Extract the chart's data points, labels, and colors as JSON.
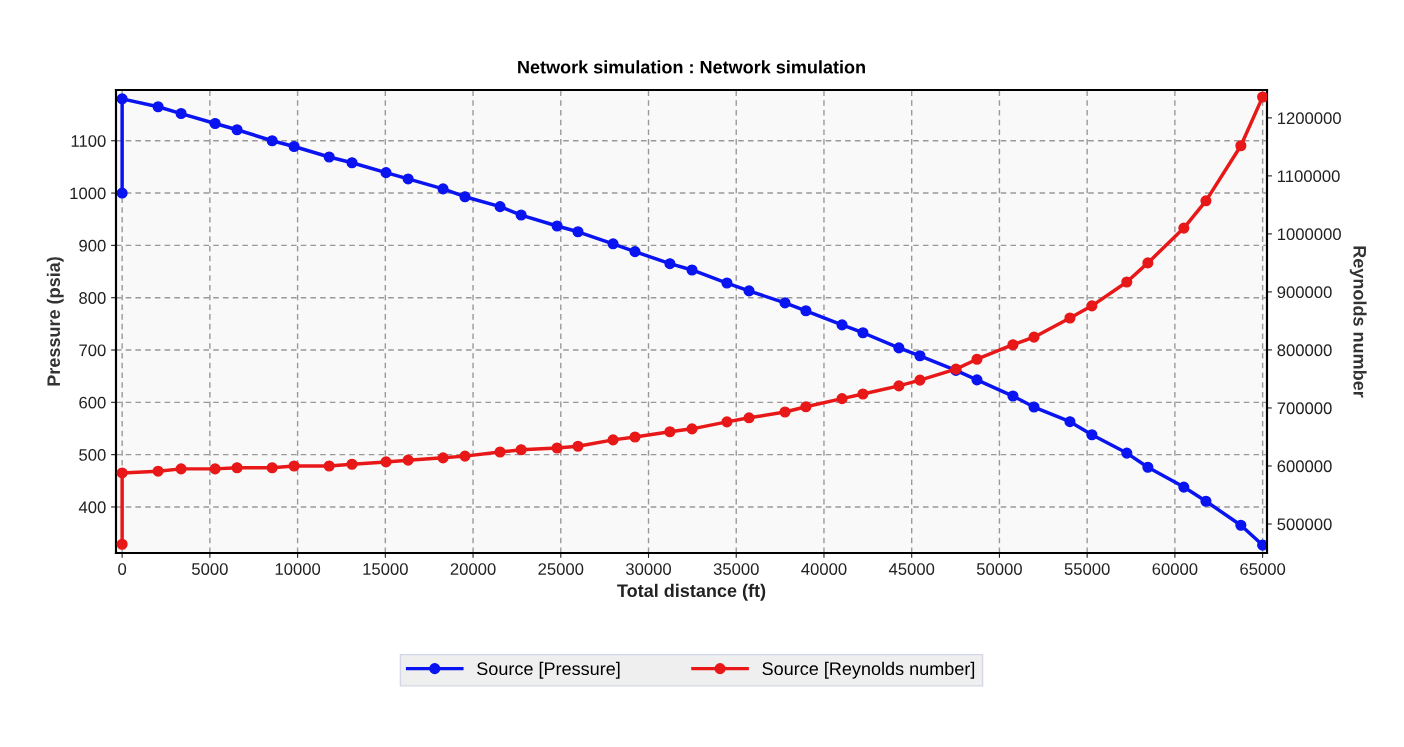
{
  "chart_data": {
    "type": "line",
    "title": "Network simulation : Network simulation",
    "xlabel": "Total distance (ft)",
    "ylabel": "Pressure (psia)",
    "y2label": "Reynolds number",
    "x": [
      0,
      0,
      2050,
      3360,
      5300,
      6550,
      8550,
      9800,
      11800,
      13100,
      15040,
      16300,
      18290,
      19540,
      21540,
      22740,
      24790,
      25980,
      27980,
      29230,
      31220,
      32480,
      34470,
      35730,
      37780,
      38970,
      41030,
      42220,
      44270,
      45470,
      47520,
      48720,
      50770,
      51970,
      54020,
      55270,
      57260,
      58460,
      60510,
      61770,
      63760,
      65000
    ],
    "series": [
      {
        "name": "Source [Pressure]",
        "color": "#0a14f0",
        "values": [
          1000,
          1180,
          1165,
          1152,
          1133,
          1121,
          1100,
          1089,
          1069,
          1058,
          1039,
          1027,
          1008,
          993,
          974,
          958,
          937,
          926,
          903,
          888,
          865,
          853,
          828,
          813,
          790,
          775,
          748,
          733,
          704,
          689,
          661,
          643,
          612,
          591,
          563,
          538,
          503,
          476,
          438,
          411,
          365,
          327
        ]
      },
      {
        "name": "Source [Reynolds number]",
        "color": "#e81818",
        "axis": "y2",
        "values": [
          465000,
          588000,
          591000,
          595000,
          595000,
          597000,
          597000,
          600000,
          600000,
          603000,
          607000,
          610000,
          614000,
          617000,
          624000,
          628000,
          631000,
          634000,
          645000,
          650000,
          659000,
          664000,
          676000,
          683000,
          693000,
          702000,
          716000,
          724000,
          738000,
          748000,
          767000,
          784000,
          809000,
          822000,
          855000,
          876000,
          917000,
          950000,
          1010000,
          1057000,
          1152000,
          1236000
        ]
      }
    ],
    "xlim": [
      -350,
      65250
    ],
    "xticks": [
      0,
      5000,
      10000,
      15000,
      20000,
      25000,
      30000,
      35000,
      40000,
      45000,
      50000,
      55000,
      60000,
      65000
    ],
    "ylim": [
      312,
      1197
    ],
    "yticks": [
      400,
      500,
      600,
      700,
      800,
      900,
      1000,
      1100
    ],
    "y2lim": [
      450000,
      1248000
    ],
    "y2ticks": [
      500000,
      600000,
      700000,
      800000,
      900000,
      1000000,
      1100000,
      1200000
    ],
    "grid": true,
    "legend": "bottom",
    "marker": "circle",
    "line_style": "solid"
  }
}
